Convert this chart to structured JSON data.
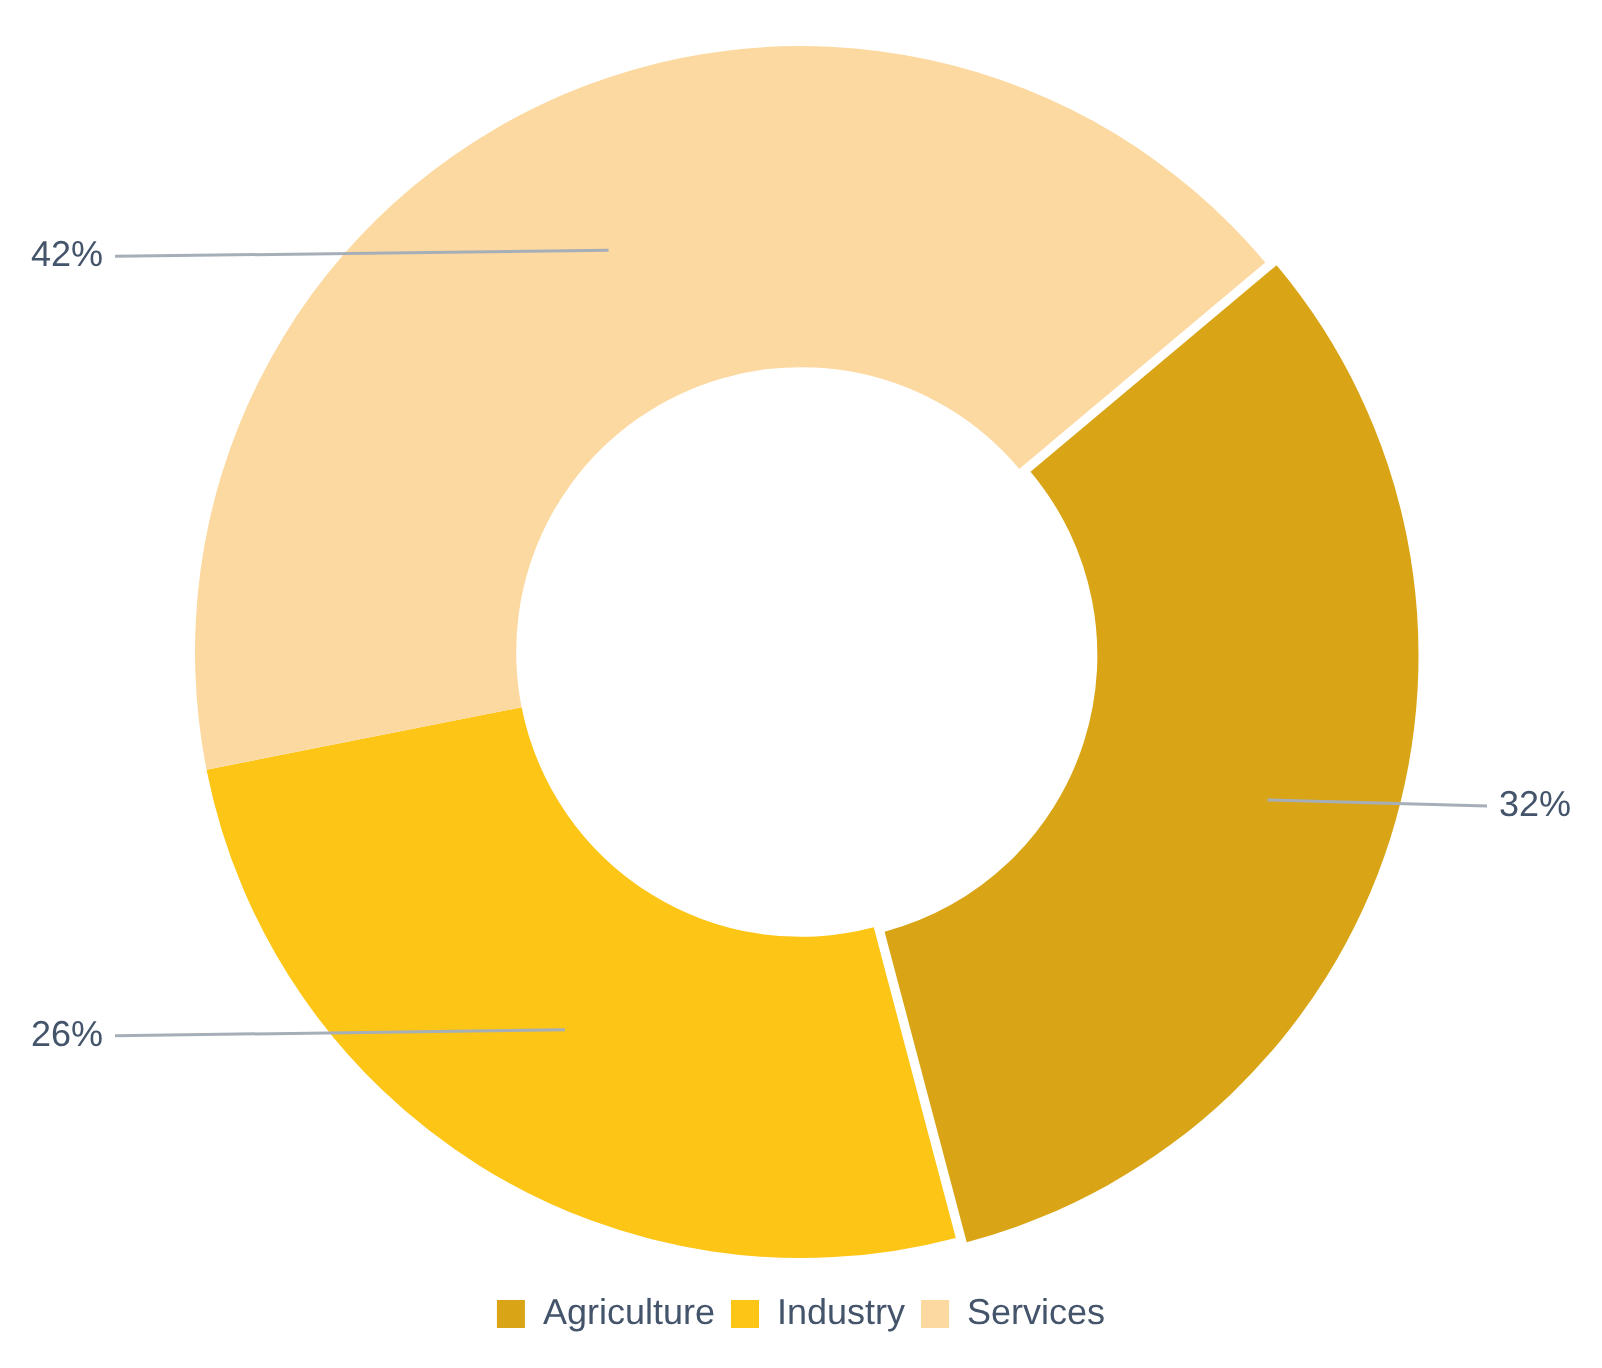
{
  "chart_data": {
    "type": "donut",
    "categories": [
      "Agriculture",
      "Industry",
      "Services"
    ],
    "values": [
      32,
      26,
      42
    ],
    "colors": [
      "#d9a516",
      "#fdc516",
      "#fcd9a0"
    ],
    "value_labels": [
      "32%",
      "26%",
      "42%"
    ],
    "legend": "bottom"
  }
}
